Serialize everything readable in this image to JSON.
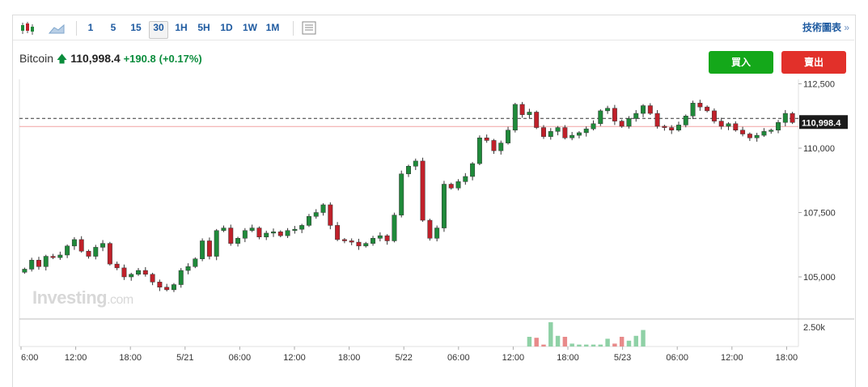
{
  "toolbar": {
    "timeframes": [
      "1",
      "5",
      "15",
      "30",
      "1H",
      "5H",
      "1D",
      "1W",
      "1M"
    ],
    "selected": "30",
    "tech_chart_label": "技術圖表",
    "tech_chart_arrow": "»"
  },
  "quote": {
    "name": "Bitcoin",
    "price": "110,998.4",
    "change": "+190.8",
    "change_pct": "(+0.17%)"
  },
  "actions": {
    "buy_label": "買入",
    "sell_label": "賣出"
  },
  "watermark": {
    "brand": "Investing",
    "suffix": ".com"
  },
  "colors": {
    "up": "#1f8a3a",
    "down": "#c0202a",
    "vol_up": "#8fd1a6",
    "vol_down": "#e88a8a",
    "accent": "#1e5aa0"
  },
  "chart_data": {
    "type": "candlestick",
    "y_ticks": [
      105000,
      107500,
      110000,
      112500
    ],
    "y_tick_labels": [
      "105,000",
      "107,500",
      "110,000",
      "112,500"
    ],
    "current_price": 110998.4,
    "current_price_label": "110,998.4",
    "x_tick_labels": [
      "6:00",
      "12:00",
      "18:00",
      "5/21",
      "06:00",
      "12:00",
      "18:00",
      "5/22",
      "06:00",
      "12:00",
      "18:00",
      "5/23",
      "06:00",
      "12:00",
      "18:00"
    ],
    "volume_label": "2.50k",
    "closes": [
      105300,
      105650,
      105400,
      105800,
      105750,
      105850,
      106200,
      106450,
      106000,
      105800,
      106150,
      106300,
      105500,
      105350,
      105000,
      105100,
      105250,
      105100,
      104800,
      104600,
      104500,
      104700,
      105250,
      105400,
      105700,
      106400,
      105800,
      106800,
      106900,
      106300,
      106500,
      106800,
      106900,
      106550,
      106700,
      106750,
      106600,
      106800,
      106850,
      107000,
      107350,
      107500,
      107800,
      107000,
      106450,
      106400,
      106350,
      106200,
      106300,
      106500,
      106600,
      106400,
      107400,
      109000,
      109300,
      109500,
      107200,
      106500,
      106900,
      108600,
      108450,
      108700,
      108900,
      109400,
      110400,
      110300,
      109900,
      110200,
      110700,
      111700,
      111300,
      111400,
      110800,
      110450,
      110650,
      110800,
      110400,
      110500,
      110600,
      110750,
      110950,
      111450,
      111550,
      111050,
      110850,
      111150,
      111350,
      111650,
      111350,
      110850,
      110800,
      110700,
      110900,
      111250,
      111750,
      111600,
      111450,
      111050,
      110850,
      110950,
      110700,
      110550,
      110400,
      110500,
      110650,
      110700,
      111000,
      111350,
      110998.4
    ],
    "volumes": [
      0,
      0,
      0,
      0,
      0,
      0,
      0,
      0,
      0,
      0,
      0,
      0,
      0,
      0,
      0,
      0,
      0,
      0,
      0,
      0,
      0,
      0,
      0,
      0,
      0,
      0,
      0,
      0,
      0,
      0,
      0,
      0,
      0,
      0,
      0,
      0,
      0,
      0,
      0,
      0,
      0,
      0,
      0,
      0,
      0,
      0,
      0,
      0,
      0,
      0,
      0,
      0,
      0,
      0,
      0,
      0,
      0,
      0,
      0,
      0,
      0,
      0,
      0,
      0,
      0,
      0,
      0,
      0,
      0,
      0,
      0,
      1.0,
      0.9,
      0.2,
      2.5,
      1.1,
      1.0,
      0.3,
      0.2,
      0.2,
      0.2,
      0.2,
      0.8,
      0.3,
      1.0,
      0.6,
      1.1,
      1.7,
      0,
      0,
      0,
      0,
      0,
      0,
      0,
      0,
      0,
      0,
      0,
      0,
      0,
      0,
      0,
      0,
      0,
      0,
      0,
      0,
      0,
      0,
      0
    ]
  }
}
